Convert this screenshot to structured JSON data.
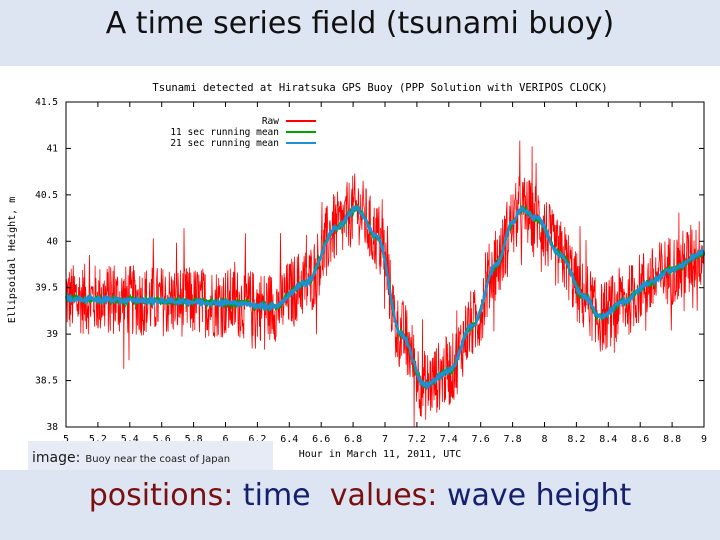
{
  "slide": {
    "title": "A time series field (tsunami buoy)",
    "image_label": "image:",
    "image_text": "Buoy near the coast of Japan",
    "caption_positions_label": "positions:",
    "caption_positions_value": "time",
    "caption_values_label": "values:",
    "caption_values_value": "wave height"
  },
  "colors": {
    "raw": "#ff0000",
    "mean11": "#00a000",
    "mean21": "#1e8fd6",
    "band": "#dde5f2"
  },
  "chart_data": {
    "type": "line",
    "title": "Tsunami detected at Hiratsuka GPS Buoy (PPP Solution with VERIPOS CLOCK)",
    "xlabel": "Hour in March 11, 2011, UTC",
    "ylabel": "Ellipsoidal Height, m",
    "xlim": [
      5,
      9
    ],
    "ylim": [
      38,
      41.5
    ],
    "xticks": [
      "5",
      "5.2",
      "5.4",
      "5.6",
      "5.8",
      "6",
      "6.2",
      "6.4",
      "6.6",
      "6.8",
      "7",
      "7.2",
      "7.4",
      "7.6",
      "7.8",
      "8",
      "8.2",
      "8.4",
      "8.6",
      "8.8",
      "9"
    ],
    "yticks": [
      "41.5",
      "41",
      "40.5",
      "40",
      "39.5",
      "39",
      "38.5",
      "38"
    ],
    "grid": false,
    "legend_position": "top-center",
    "series": [
      {
        "name": "Raw",
        "x": [
          5.0,
          5.5,
          6.0,
          6.3,
          6.5,
          6.7,
          6.82,
          6.95,
          7.1,
          7.25,
          7.4,
          7.55,
          7.7,
          7.8,
          7.85,
          7.95,
          8.1,
          8.25,
          8.35,
          8.5,
          8.65,
          8.8,
          9.0
        ],
        "y": [
          39.38,
          39.36,
          39.34,
          39.3,
          39.55,
          40.15,
          40.35,
          40.05,
          39.0,
          38.45,
          38.6,
          39.1,
          39.75,
          40.2,
          40.35,
          40.25,
          39.85,
          39.4,
          39.18,
          39.35,
          39.55,
          39.7,
          39.88
        ],
        "noise_amplitude": 0.55
      },
      {
        "name": "11 sec running mean",
        "x": [
          5.0,
          5.5,
          6.0,
          6.3,
          6.5,
          6.7,
          6.82,
          6.95,
          7.1,
          7.25,
          7.4,
          7.55,
          7.7,
          7.8,
          7.85,
          7.95,
          8.1,
          8.25,
          8.35,
          8.5,
          8.65,
          8.8,
          9.0
        ],
        "y": [
          39.38,
          39.36,
          39.34,
          39.3,
          39.55,
          40.15,
          40.35,
          40.05,
          39.0,
          38.45,
          38.6,
          39.1,
          39.75,
          40.2,
          40.35,
          40.25,
          39.85,
          39.4,
          39.18,
          39.35,
          39.55,
          39.7,
          39.88
        ]
      },
      {
        "name": "21 sec running mean",
        "x": [
          5.0,
          5.5,
          6.0,
          6.3,
          6.5,
          6.7,
          6.82,
          6.95,
          7.1,
          7.25,
          7.4,
          7.55,
          7.7,
          7.8,
          7.85,
          7.95,
          8.1,
          8.25,
          8.35,
          8.5,
          8.65,
          8.8,
          9.0
        ],
        "y": [
          39.38,
          39.36,
          39.34,
          39.3,
          39.55,
          40.15,
          40.35,
          40.05,
          39.0,
          38.45,
          38.6,
          39.1,
          39.75,
          40.2,
          40.35,
          40.25,
          39.85,
          39.4,
          39.18,
          39.35,
          39.55,
          39.7,
          39.88
        ]
      }
    ]
  }
}
